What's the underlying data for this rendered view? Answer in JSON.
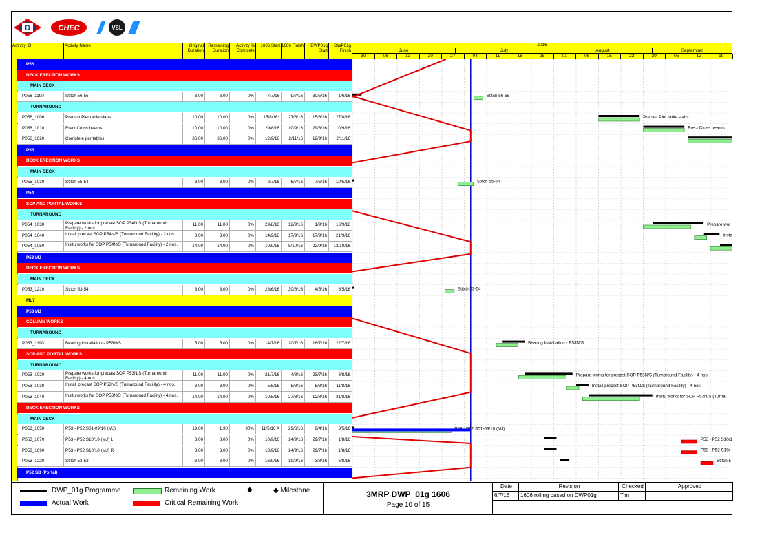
{
  "logos": {
    "d_logo": "D",
    "chec_logo": "CHEC",
    "vsl_logo": "VSL"
  },
  "columns": {
    "activity_id": "Activity ID",
    "activity_name": "Activity Name",
    "orig_dur": "Original Duration",
    "rem_dur": "Remaining Duration",
    "pct": "Activity % Complete",
    "s1606": "1606 Start",
    "f1606": "1606 Finish",
    "sdwp": "DWP01g Start",
    "fdwp": "DWP01g Finish"
  },
  "timeline": {
    "year": "2016",
    "months": [
      "June",
      "July",
      "August",
      "September"
    ],
    "weeks": [
      "30",
      "06",
      "13",
      "20",
      "27",
      "04",
      "11",
      "18",
      "25",
      "01",
      "08",
      "15",
      "22",
      "29",
      "05",
      "12",
      "19"
    ]
  },
  "rows": [
    {
      "type": "band",
      "color": "#0000ff",
      "label": "P56"
    },
    {
      "type": "band",
      "color": "#ff0000",
      "label": "DECK ERECTION WORKS"
    },
    {
      "type": "sub",
      "label": "MAIN DECK"
    },
    {
      "type": "act",
      "id": "P056_1190",
      "name": "Stitch 56-55",
      "od": "3.00",
      "rd": "3.00",
      "pc": "0%",
      "s": "7/7/16",
      "f": "9/7/16",
      "ds": "30/5/16",
      "df": "1/6/16"
    },
    {
      "type": "sub",
      "label": "TURNAROUND"
    },
    {
      "type": "act",
      "id": "P056_1000",
      "name": "Precast Pier table slabs",
      "od": "10.00",
      "rd": "10.00",
      "pc": "0%",
      "s": "15/8/16*",
      "f": "27/8/16",
      "ds": "15/8/16",
      "df": "27/8/16"
    },
    {
      "type": "act",
      "id": "P056_1010",
      "name": "Erect Cross beams",
      "od": "10.00",
      "rd": "10.00",
      "pc": "0%",
      "s": "29/8/16",
      "f": "10/9/16",
      "ds": "29/8/16",
      "df": "10/9/16"
    },
    {
      "type": "act",
      "id": "P056_1020",
      "name": "Complete per tables",
      "od": "36.00",
      "rd": "36.00",
      "pc": "0%",
      "s": "12/9/16",
      "f": "2/11/16",
      "ds": "12/9/16",
      "df": "2/11/16"
    },
    {
      "type": "band",
      "color": "#0000ff",
      "label": "P55"
    },
    {
      "type": "band",
      "color": "#ff0000",
      "label": "DECK ERECTION WORKS"
    },
    {
      "type": "sub",
      "label": "MAIN DECK"
    },
    {
      "type": "act",
      "id": "P055_1030",
      "name": "Stitch 55-54",
      "od": "3.00",
      "rd": "3.00",
      "pc": "0%",
      "s": "2/7/16",
      "f": "6/7/16",
      "ds": "7/5/16",
      "df": "10/5/16"
    },
    {
      "type": "band",
      "color": "#0000ff",
      "label": "P54"
    },
    {
      "type": "band",
      "color": "#ff0000",
      "label": "SOP AND PORTAL WORKS"
    },
    {
      "type": "sub",
      "label": "TURNAROUND"
    },
    {
      "type": "act",
      "id": "P054_1030",
      "name": "Prepare works for precast SOP P54N/S (Turnaround Facility) - 2 nos.",
      "od": "11.00",
      "rd": "11.00",
      "pc": "0%",
      "s": "29/8/16",
      "f": "12/9/16",
      "ds": "1/9/16",
      "df": "16/9/16"
    },
    {
      "type": "act",
      "id": "P054_1040",
      "name": "Install precast SOP P54N/S (Turnaround Facility) - 2 nos.",
      "od": "3.00",
      "rd": "3.00",
      "pc": "0%",
      "s": "14/9/16",
      "f": "17/9/16",
      "ds": "17/9/16",
      "df": "21/9/16"
    },
    {
      "type": "act",
      "id": "P054_1050",
      "name": "Insitu works for SOP P54N/S (Turnaround Facility) - 2 nos.",
      "od": "14.00",
      "rd": "14.00",
      "pc": "0%",
      "s": "19/9/16",
      "f": "8/10/16",
      "ds": "22/9/16",
      "df": "13/10/16"
    },
    {
      "type": "band",
      "color": "#0000ff",
      "label": "P53 MJ"
    },
    {
      "type": "band",
      "color": "#ff0000",
      "label": "DECK ERECTION WORKS"
    },
    {
      "type": "sub",
      "label": "MAIN DECK"
    },
    {
      "type": "act",
      "id": "P053_1210",
      "name": "Stitch 53-54",
      "od": "3.00",
      "rd": "3.00",
      "pc": "0%",
      "s": "28/6/16",
      "f": "30/6/16",
      "ds": "4/5/16",
      "df": "6/5/16"
    },
    {
      "type": "band",
      "color": "#ffff00",
      "label": "ML7",
      "dark": true
    },
    {
      "type": "band",
      "color": "#0000ff",
      "label": "P53 MJ"
    },
    {
      "type": "band",
      "color": "#ff0000",
      "label": "COLUMN WORKS"
    },
    {
      "type": "sub",
      "label": "TURNAROUND"
    },
    {
      "type": "act",
      "id": "P053_1190",
      "name": "Bearing Installation - P53N/S",
      "od": "5.00",
      "rd": "5.00",
      "pc": "0%",
      "s": "14/7/16",
      "f": "20/7/16",
      "ds": "16/7/16",
      "df": "22/7/16"
    },
    {
      "type": "band",
      "color": "#ff0000",
      "label": "SOP AND PORTAL WORKS"
    },
    {
      "type": "sub",
      "label": "TURNAROUND"
    },
    {
      "type": "act",
      "id": "P053_1020",
      "name": "Prepare works for precast SOP P53N/S (Turnaround Facility) - 4 nos.",
      "od": "11.00",
      "rd": "11.00",
      "pc": "0%",
      "s": "21/7/16",
      "f": "4/8/16",
      "ds": "23/7/16",
      "df": "6/8/16"
    },
    {
      "type": "act",
      "id": "P053_1030",
      "name": "Install precast SOP P53N/S (Turnaround Facility) - 4 nos.",
      "od": "3.00",
      "rd": "3.00",
      "pc": "0%",
      "s": "5/8/16",
      "f": "8/8/16",
      "ds": "8/8/16",
      "df": "11/8/16"
    },
    {
      "type": "act",
      "id": "P053_1040",
      "name": "Insitu works for SOP P53N/S (Turnaround Facility) - 4 nos.",
      "od": "14.00",
      "rd": "14.00",
      "pc": "0%",
      "s": "10/8/16",
      "f": "27/8/16",
      "ds": "12/8/16",
      "df": "31/8/16"
    },
    {
      "type": "band",
      "color": "#ff0000",
      "label": "DECK ERECTION WORKS"
    },
    {
      "type": "sub",
      "label": "MAIN DECK"
    },
    {
      "type": "act",
      "id": "P053_1050",
      "name": "P53 - P52 S01-09/10 (MJ)",
      "od": "19.00",
      "rd": "1.90",
      "pc": "90%",
      "s": "11/5/16 A",
      "f": "29/6/16",
      "ds": "9/4/16",
      "df": "3/5/16"
    },
    {
      "type": "act",
      "id": "P053_1070",
      "name": "P53 - P52 S10/10 (MJ) L",
      "od": "3.00",
      "rd": "3.00",
      "pc": "0%",
      "s": "10/9/16",
      "f": "14/9/16",
      "ds": "29/7/16",
      "df": "1/8/16"
    },
    {
      "type": "act",
      "id": "P053_1090",
      "name": "P53 - P52 S10/10 (MJ) R",
      "od": "3.00",
      "rd": "3.00",
      "pc": "0%",
      "s": "10/9/16",
      "f": "14/9/16",
      "ds": "29/7/16",
      "df": "1/8/16"
    },
    {
      "type": "act",
      "id": "P053_1220",
      "name": "Stitch 53-52",
      "od": "3.00",
      "rd": "3.00",
      "pc": "0%",
      "s": "16/9/16",
      "f": "19/9/16",
      "ds": "3/8/16",
      "df": "5/8/16"
    },
    {
      "type": "band",
      "color": "#0000ff",
      "label": "P52 SB (Portal)"
    }
  ],
  "gantt_labels": {
    "stitch_5655": "Stitch 56-55",
    "precast_pier": "Precast Pier table slabs",
    "erect_cross": "Erect Cross beams",
    "stitch_5554": "Stitch 55-54",
    "prep_p54": "Prepare wor",
    "inst_p54": "Insta",
    "stitch_5354": "Stitch 53-54",
    "bearing": "Bearing Installation - P53N/S",
    "prep_p53": "Prepare works for precast SOP P53N/S (Turnaround Facility) - 4 nos.",
    "inst_p53": "Install precast SOP P53N/S (Turnaround Facility) - 4 nos.",
    "insitu_p53": "Insitu works for SOP P53N/S (Turna",
    "p53_s01": "P53 - P52 S01-09/10 (MJ)",
    "p53_s10l": "P53 - P52 S10/1",
    "p53_s10r": "P53 - P52 S10/",
    "stitch_5352": "Stitch 5"
  },
  "legend": {
    "baseline": "DWP_01g Programme",
    "remaining": "Remaining Work",
    "milestone": "Milestone",
    "actual": "Actual Work",
    "critical": "Critical Remaining Work"
  },
  "title_block": {
    "title": "3MRP DWP_01g 1606",
    "page": "Page 10 of 15"
  },
  "revision": {
    "h_date": "Date",
    "h_rev": "Revision",
    "h_checked": "Checked",
    "h_approved": "Approved",
    "date": "6/7/16",
    "rev": "1606 rolling based on DWP01g",
    "checked": "Tim",
    "approved": ""
  },
  "colors": {
    "band_blue": "#0000ff",
    "band_red": "#ff0000",
    "sub_cyan": "#80ffff",
    "header_yellow": "#ffff00",
    "remaining_green": "#90ee90"
  }
}
